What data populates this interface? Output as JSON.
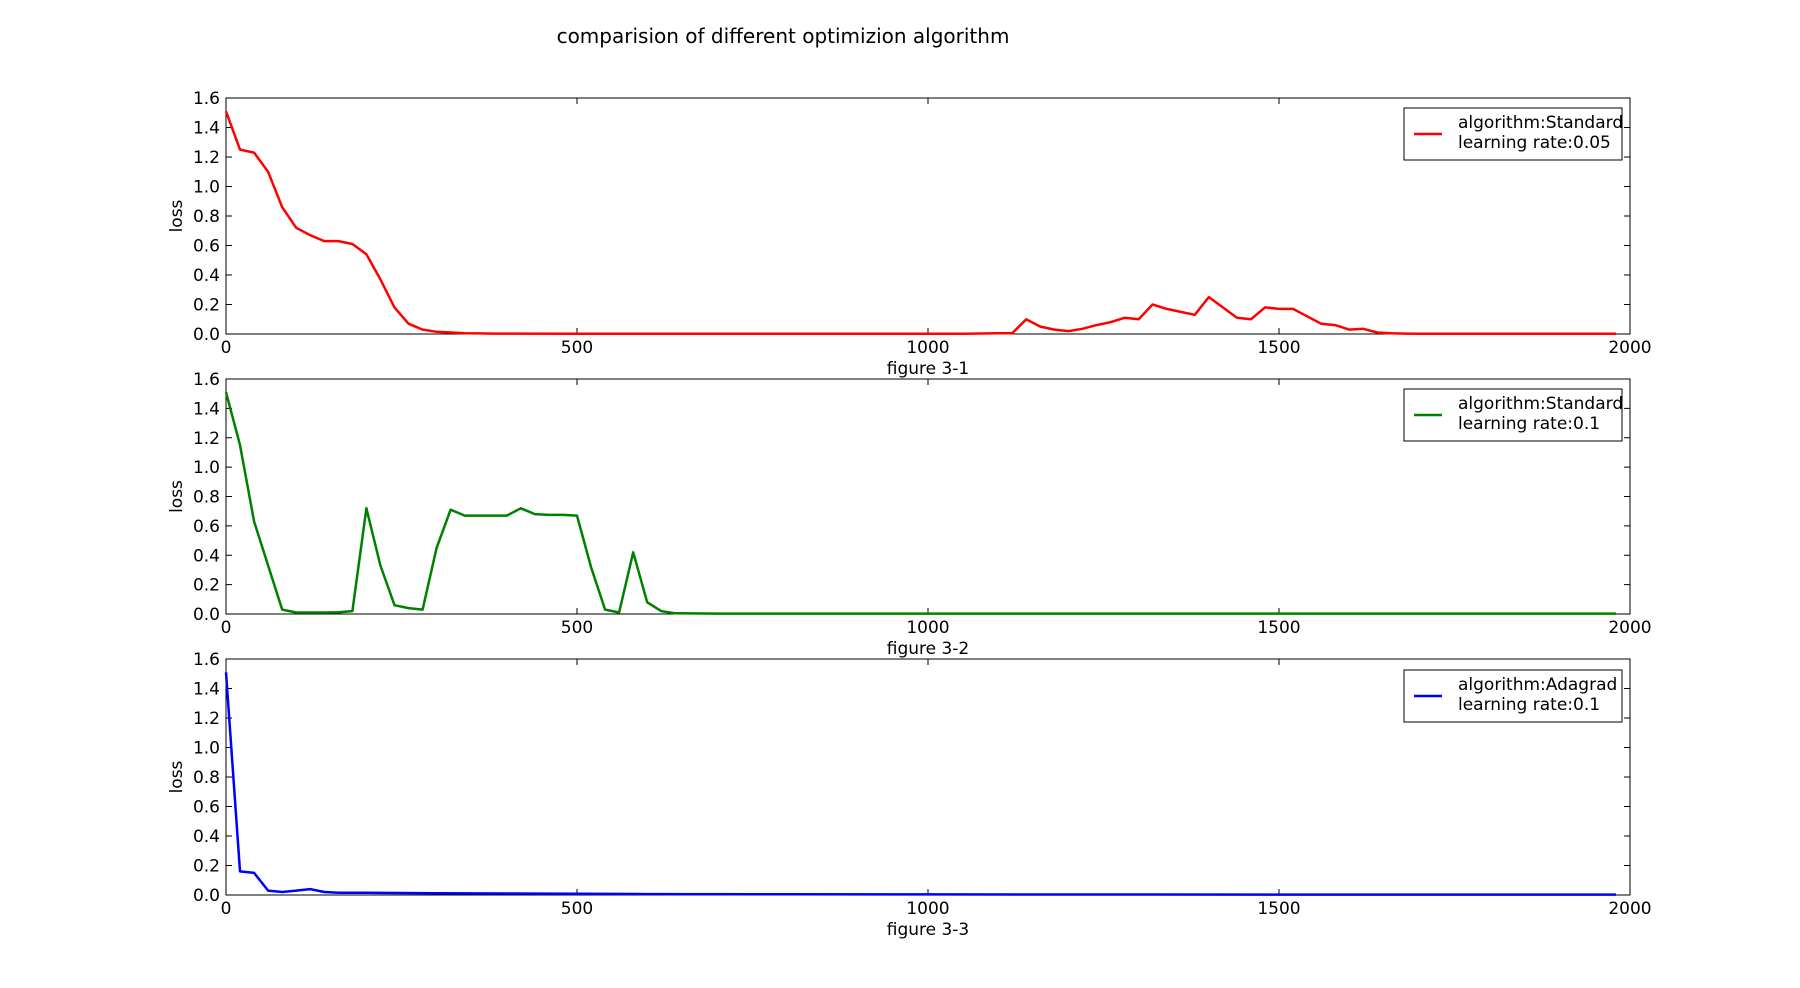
{
  "figure": {
    "title": "comparision of different optimizion algorithm"
  },
  "chart_data": [
    {
      "type": "line",
      "xlabel": "figure 3-1",
      "ylabel": "loss",
      "xlim": [
        0,
        2000
      ],
      "ylim": [
        0,
        1.6
      ],
      "xticks": [
        0,
        500,
        1000,
        1500,
        2000
      ],
      "yticks": [
        0.0,
        0.2,
        0.4,
        0.6,
        0.8,
        1.0,
        1.2,
        1.4,
        1.6
      ],
      "grid": false,
      "legend_position": "top-right",
      "legend_lines": [
        "algorithm:Standard",
        "learning rate:0.05"
      ],
      "series": [
        {
          "color": "#ff0000",
          "x": [
            0,
            20,
            40,
            60,
            80,
            100,
            120,
            140,
            160,
            180,
            200,
            220,
            240,
            260,
            280,
            300,
            320,
            340,
            360,
            380,
            400,
            500,
            600,
            700,
            800,
            900,
            1000,
            1050,
            1100,
            1120,
            1140,
            1160,
            1180,
            1200,
            1220,
            1240,
            1260,
            1280,
            1300,
            1320,
            1340,
            1360,
            1380,
            1400,
            1420,
            1440,
            1460,
            1480,
            1500,
            1520,
            1540,
            1560,
            1580,
            1600,
            1620,
            1640,
            1660,
            1680,
            1700,
            1800,
            1900,
            1980
          ],
          "y": [
            1.51,
            1.25,
            1.23,
            1.1,
            0.86,
            0.72,
            0.67,
            0.63,
            0.63,
            0.61,
            0.54,
            0.37,
            0.18,
            0.07,
            0.03,
            0.015,
            0.01,
            0.005,
            0.004,
            0.003,
            0.003,
            0.002,
            0.002,
            0.002,
            0.002,
            0.002,
            0.002,
            0.002,
            0.005,
            0.005,
            0.1,
            0.05,
            0.03,
            0.02,
            0.035,
            0.06,
            0.08,
            0.11,
            0.1,
            0.2,
            0.17,
            0.15,
            0.13,
            0.25,
            0.18,
            0.11,
            0.1,
            0.18,
            0.17,
            0.17,
            0.12,
            0.07,
            0.06,
            0.03,
            0.035,
            0.01,
            0.005,
            0.003,
            0.002,
            0.002,
            0.002,
            0.002
          ]
        }
      ]
    },
    {
      "type": "line",
      "xlabel": "figure 3-2",
      "ylabel": "loss",
      "xlim": [
        0,
        2000
      ],
      "ylim": [
        0,
        1.6
      ],
      "xticks": [
        0,
        500,
        1000,
        1500,
        2000
      ],
      "yticks": [
        0.0,
        0.2,
        0.4,
        0.6,
        0.8,
        1.0,
        1.2,
        1.4,
        1.6
      ],
      "grid": false,
      "legend_position": "top-right",
      "legend_lines": [
        "algorithm:Standard",
        "learning rate:0.1"
      ],
      "series": [
        {
          "color": "#008000",
          "x": [
            0,
            20,
            40,
            60,
            80,
            100,
            120,
            140,
            160,
            180,
            200,
            220,
            240,
            260,
            280,
            300,
            320,
            340,
            360,
            380,
            400,
            420,
            440,
            460,
            480,
            500,
            520,
            540,
            560,
            580,
            600,
            620,
            640,
            700,
            800,
            1000,
            1500,
            1980
          ],
          "y": [
            1.51,
            1.15,
            0.63,
            0.33,
            0.03,
            0.01,
            0.01,
            0.01,
            0.012,
            0.02,
            0.72,
            0.33,
            0.06,
            0.04,
            0.03,
            0.45,
            0.71,
            0.67,
            0.67,
            0.67,
            0.67,
            0.72,
            0.68,
            0.675,
            0.675,
            0.67,
            0.32,
            0.03,
            0.01,
            0.42,
            0.08,
            0.02,
            0.005,
            0.003,
            0.003,
            0.003,
            0.003,
            0.003
          ]
        }
      ]
    },
    {
      "type": "line",
      "xlabel": "figure 3-3",
      "ylabel": "loss",
      "xlim": [
        0,
        2000
      ],
      "ylim": [
        0,
        1.6
      ],
      "xticks": [
        0,
        500,
        1000,
        1500,
        2000
      ],
      "yticks": [
        0.0,
        0.2,
        0.4,
        0.6,
        0.8,
        1.0,
        1.2,
        1.4,
        1.6
      ],
      "grid": false,
      "legend_position": "top-right",
      "legend_lines": [
        "algorithm:Adagrad",
        "learning rate:0.1"
      ],
      "series": [
        {
          "color": "#0000ff",
          "x": [
            0,
            20,
            40,
            60,
            80,
            100,
            120,
            140,
            160,
            200,
            300,
            400,
            500,
            600,
            800,
            1000,
            1500,
            1980
          ],
          "y": [
            1.51,
            0.16,
            0.15,
            0.03,
            0.02,
            0.03,
            0.04,
            0.02,
            0.015,
            0.015,
            0.012,
            0.01,
            0.008,
            0.006,
            0.005,
            0.004,
            0.003,
            0.003
          ]
        }
      ]
    }
  ]
}
